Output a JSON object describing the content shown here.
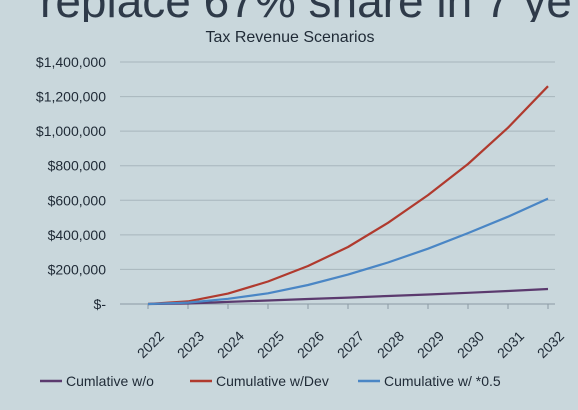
{
  "banner": {
    "text": "replace 67% share in 7 ye"
  },
  "chart_data": {
    "type": "line",
    "title": "Tax Revenue Scenarios",
    "xlabel": "",
    "ylabel": "",
    "x": [
      "2022",
      "2023",
      "2024",
      "2025",
      "2026",
      "2027",
      "2028",
      "2029",
      "2030",
      "2031",
      "2032"
    ],
    "ylim": [
      0,
      1400000
    ],
    "yticks": [
      0,
      200000,
      400000,
      600000,
      800000,
      1000000,
      1200000,
      1400000
    ],
    "ytick_labels": [
      "$-",
      "$200,000",
      "$400,000",
      "$600,000",
      "$800,000",
      "$1,000,000",
      "$1,200,000",
      "$1,400,000"
    ],
    "grid": true,
    "legend": "bottom",
    "series": [
      {
        "name": "Cumlative w/o",
        "color": "#5b3a6e",
        "values": [
          0,
          3000,
          12000,
          20000,
          29000,
          37000,
          46000,
          55000,
          65000,
          75000,
          87000
        ]
      },
      {
        "name": "Cumulative w/Dev",
        "color": "#b03a2e",
        "values": [
          0,
          15000,
          60000,
          130000,
          220000,
          330000,
          470000,
          630000,
          810000,
          1020000,
          1260000
        ]
      },
      {
        "name": "Cumulative w/ *0.5",
        "color": "#4a86c5",
        "values": [
          0,
          8000,
          30000,
          62000,
          110000,
          170000,
          240000,
          320000,
          410000,
          505000,
          610000
        ]
      }
    ]
  }
}
